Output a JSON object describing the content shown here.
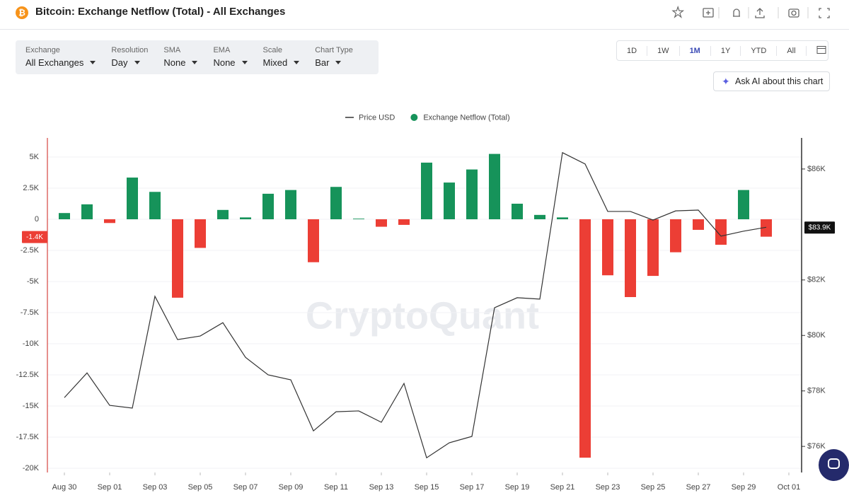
{
  "header": {
    "title": "Bitcoin: Exchange Netflow (Total) - All Exchanges"
  },
  "controls": [
    {
      "label": "Exchange",
      "value": "All Exchanges"
    },
    {
      "label": "Resolution",
      "value": "Day"
    },
    {
      "label": "SMA",
      "value": "None"
    },
    {
      "label": "EMA",
      "value": "None"
    },
    {
      "label": "Scale",
      "value": "Mixed"
    },
    {
      "label": "Chart Type",
      "value": "Bar"
    }
  ],
  "ranges": [
    "1D",
    "1W",
    "1M",
    "1Y",
    "YTD",
    "All"
  ],
  "ask_ai": "Ask AI about this chart",
  "watermark": "CryptoQuant",
  "chart_data": {
    "type": "bar",
    "categories": [
      "Aug 30",
      null,
      "Sep 01",
      null,
      "Sep 03",
      null,
      "Sep 05",
      null,
      "Sep 07",
      null,
      "Sep 09",
      null,
      "Sep 11",
      null,
      "Sep 13",
      null,
      "Sep 15",
      null,
      "Sep 17",
      null,
      "Sep 19",
      null,
      "Sep 21",
      null,
      "Sep 23",
      null,
      "Sep 25",
      null,
      "Sep 27",
      null,
      "Sep 29",
      null,
      "Oct 01"
    ],
    "series": [
      {
        "name": "Price USD",
        "type": "line",
        "axis": "y2",
        "color": "#333333",
        "values": [
          77760,
          78650,
          77480,
          77380,
          81410,
          79850,
          79980,
          80460,
          79210,
          78580,
          78400,
          76560,
          77250,
          77280,
          76870,
          78270,
          75590,
          76130,
          76360,
          81000,
          81360,
          81310,
          86590,
          86180,
          84470,
          84470,
          84160,
          84490,
          84520,
          83580,
          83760,
          83900,
          null
        ]
      },
      {
        "name": "Exchange Netflow (Total)",
        "type": "bar",
        "color": "#16935a",
        "negative_color": "#ec3e35",
        "values": [
          500,
          1200,
          -300,
          3350,
          2200,
          -6300,
          -2300,
          750,
          150,
          2050,
          2350,
          -3450,
          2600,
          50,
          -600,
          -450,
          4550,
          2950,
          4000,
          5250,
          1250,
          350,
          150,
          -19150,
          -4500,
          -6250,
          -4550,
          -2650,
          -850,
          -2050,
          2350,
          -1400,
          null
        ]
      }
    ],
    "ylim": [
      -20341,
      6534
    ],
    "yticks": [
      {
        "value": 5000,
        "label": "5K"
      },
      {
        "value": 2500,
        "label": "2.5K"
      },
      0,
      {
        "value": -2500,
        "label": "-2.5K"
      },
      {
        "value": -5000,
        "label": "-5K"
      },
      {
        "value": -7500,
        "label": "-7.5K"
      },
      {
        "value": -10000,
        "label": "-10K"
      },
      {
        "value": -12500,
        "label": "-12.5K"
      },
      {
        "value": -15000,
        "label": "-15K"
      },
      {
        "value": -17500,
        "label": "-17.5K"
      },
      {
        "value": -20000,
        "label": "-20K"
      }
    ],
    "y2lim": [
      75060,
      87120
    ],
    "y2ticks": [
      {
        "value": 86000,
        "label": "$86K"
      },
      {
        "value": 82000,
        "label": "$82K"
      },
      {
        "value": 80000,
        "label": "$80K"
      },
      {
        "value": 78000,
        "label": "$78K"
      },
      {
        "value": 76000,
        "label": "$76K"
      }
    ],
    "annotations": [
      {
        "value": -1400,
        "label": "-1.4K",
        "axis": "y",
        "color": "#ec3e35"
      },
      {
        "value": 83900,
        "label": "$83.9K",
        "axis": "y2",
        "color": "#111111"
      }
    ],
    "grid": true,
    "legend": "top"
  }
}
